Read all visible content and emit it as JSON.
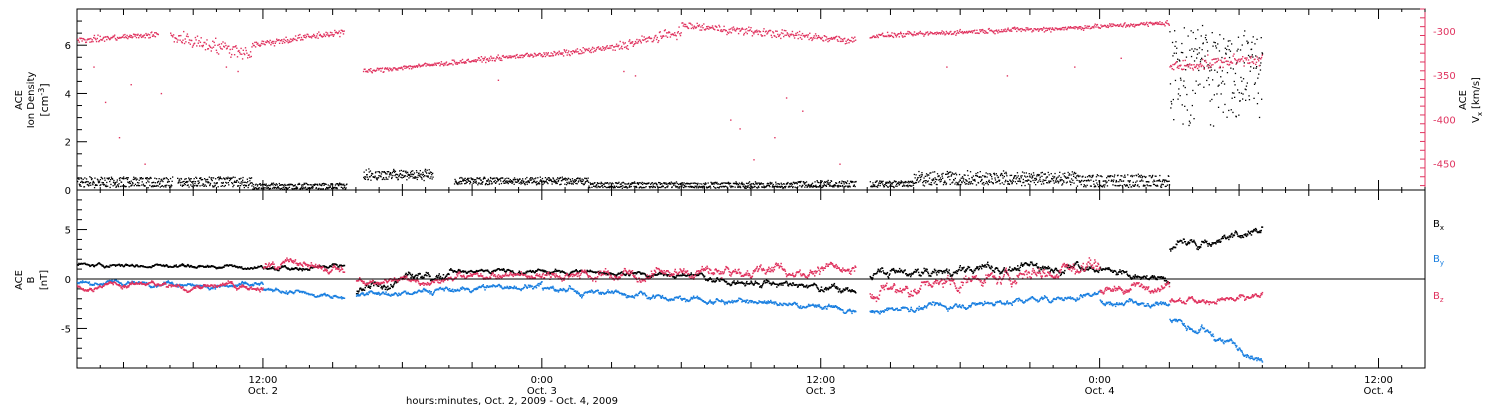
{
  "colors": {
    "black": "#000000",
    "pink": "#e0335f",
    "blue": "#1a7fe0",
    "background": "#ffffff"
  },
  "labels": {
    "top_left_l1": "ACE",
    "top_left_l2": "Ion Density",
    "top_left_unit_base": "[cm",
    "top_left_unit_sup": "-3",
    "top_left_unit_end": "]",
    "top_right_l1": "ACE",
    "top_right_v": "V",
    "top_right_vsub": "x",
    "top_right_unit": "[km/s]",
    "bottom_left_l1": "ACE",
    "bottom_left_b": "B",
    "bottom_left_unit": "[nT]",
    "legend_b": "B",
    "legend_x": "x",
    "legend_y": "y",
    "legend_z": "z",
    "xaxis_title": "hours:minutes, Oct.  2, 2009 - Oct.  4, 2009"
  },
  "time_ticks": [
    {
      "line1": "12:00",
      "line2": "Oct. 2",
      "t": 12
    },
    {
      "line1": "0:00",
      "line2": "Oct. 3",
      "t": 24
    },
    {
      "line1": "12:00",
      "line2": "Oct. 3",
      "t": 36
    },
    {
      "line1": "0:00",
      "line2": "Oct. 4",
      "t": 48
    },
    {
      "line1": "12:00",
      "line2": "Oct. 4",
      "t": 60
    }
  ],
  "chart_data": [
    {
      "type": "scatter",
      "panel": "top",
      "x_unit": "hours since 2009-10-02 00:00",
      "xlim": [
        4,
        62
      ],
      "y_left": {
        "label": "ACE Ion Density [cm-3]",
        "lim": [
          0,
          7.5
        ],
        "ticks": [
          0,
          2,
          4,
          6
        ]
      },
      "y_right": {
        "label": "ACE Vx [km/s]",
        "lim": [
          -480,
          -275
        ],
        "ticks": [
          -300,
          -350,
          -400,
          -450
        ]
      },
      "series": [
        {
          "name": "Ion Density",
          "axis": "left",
          "color": "#000000",
          "segments": [
            {
              "t0": 4.0,
              "t1": 11.5,
              "levels": [
                0.2,
                0.35,
                0.5
              ],
              "noise": 0.1
            },
            {
              "t0": 11.5,
              "t1": 16.0,
              "levels": [
                0.1,
                0.25
              ],
              "noise": 0.08
            },
            {
              "t0": 16.0,
              "t1": 20.0,
              "levels": [
                0.7,
                0.6,
                0.8,
                0.5
              ],
              "noise": 0.15
            },
            {
              "t0": 20.0,
              "t1": 26.0,
              "levels": [
                0.4,
                0.3,
                0.5
              ],
              "noise": 0.1
            },
            {
              "t0": 26.0,
              "t1": 35.0,
              "levels": [
                0.15,
                0.3
              ],
              "noise": 0.08
            },
            {
              "t0": 35.0,
              "t1": 40.0,
              "levels": [
                0.2,
                0.35
              ],
              "noise": 0.1
            },
            {
              "t0": 40.0,
              "t1": 47.0,
              "levels": [
                0.4,
                0.55,
                0.3,
                0.7
              ],
              "noise": 0.15
            },
            {
              "t0": 47.0,
              "t1": 51.0,
              "levels": [
                0.2,
                0.4,
                0.6
              ],
              "noise": 0.1
            },
            {
              "t0": 51.0,
              "t1": 55.0,
              "levels": [
                5.5,
                4.5,
                6.0,
                3.5
              ],
              "noise": 1.2
            }
          ],
          "gaps": [
            [
              8.1,
              8.3
            ],
            [
              15.6,
              16.3
            ],
            [
              19.3,
              20.2
            ],
            [
              37.5,
              38.1
            ]
          ]
        },
        {
          "name": "Vx",
          "axis": "right",
          "color": "#e0335f",
          "segments": [
            {
              "t0": 4.0,
              "t1": 7.5,
              "v0": -310,
              "v1": -303,
              "noise": 5
            },
            {
              "t0": 8.0,
              "t1": 11.5,
              "v0": -305,
              "v1": -325,
              "noise": 12
            },
            {
              "t0": 11.5,
              "t1": 15.5,
              "v0": -315,
              "v1": -300,
              "noise": 6
            },
            {
              "t0": 16.3,
              "t1": 24.0,
              "v0": -345,
              "v1": -325,
              "noise": 4
            },
            {
              "t0": 24.0,
              "t1": 27.0,
              "v0": -327,
              "v1": -318,
              "noise": 5
            },
            {
              "t0": 27.0,
              "t1": 30.0,
              "v0": -318,
              "v1": -300,
              "noise": 8
            },
            {
              "t0": 30.0,
              "t1": 37.5,
              "v0": -293,
              "v1": -310,
              "noise": 7
            },
            {
              "t0": 38.1,
              "t1": 45.0,
              "v0": -305,
              "v1": -297,
              "noise": 4
            },
            {
              "t0": 45.0,
              "t1": 51.0,
              "v0": -298,
              "v1": -290,
              "noise": 4
            },
            {
              "t0": 51.0,
              "t1": 55.0,
              "v0": -340,
              "v1": -330,
              "noise": 10
            }
          ],
          "scatter_low": [
            [
              4.7,
              -340
            ],
            [
              5.2,
              -380
            ],
            [
              5.8,
              -420
            ],
            [
              6.3,
              -360
            ],
            [
              6.9,
              -450
            ],
            [
              7.6,
              -370
            ],
            [
              10.4,
              -340
            ],
            [
              10.9,
              -345
            ],
            [
              22.1,
              -355
            ],
            [
              27.5,
              -345
            ],
            [
              28.0,
              -350
            ],
            [
              32.1,
              -400
            ],
            [
              32.5,
              -410
            ],
            [
              33.1,
              -445
            ],
            [
              34.0,
              -420
            ],
            [
              34.5,
              -375
            ],
            [
              35.2,
              -390
            ],
            [
              36.8,
              -450
            ],
            [
              41.4,
              -340
            ],
            [
              44.0,
              -350
            ],
            [
              46.9,
              -340
            ],
            [
              48.9,
              -330
            ]
          ]
        }
      ]
    },
    {
      "type": "scatter",
      "panel": "bottom",
      "x_unit": "hours since 2009-10-02 00:00",
      "xlim": [
        4,
        62
      ],
      "y_left": {
        "label": "ACE B [nT]",
        "lim": [
          -9,
          9
        ],
        "ticks": [
          5,
          0,
          -5
        ]
      },
      "legend": [
        "Bx",
        "By",
        "Bz"
      ],
      "legend_position": "right",
      "series": [
        {
          "name": "Bx",
          "color": "#000000",
          "segments": [
            {
              "t0": 4.0,
              "t1": 12.0,
              "v0": 1.5,
              "v1": 1.3,
              "noise": 0.3
            },
            {
              "t0": 12.0,
              "t1": 15.5,
              "v0": 1.2,
              "v1": 1.3,
              "noise": 0.4
            },
            {
              "t0": 16.0,
              "t1": 20.0,
              "v0": -1.5,
              "v1": 1.0,
              "noise": 0.8
            },
            {
              "t0": 20.0,
              "t1": 31.0,
              "v0": 1.0,
              "v1": 0.5,
              "noise": 0.4
            },
            {
              "t0": 31.0,
              "t1": 37.5,
              "v0": 0.0,
              "v1": -1.0,
              "noise": 0.6
            },
            {
              "t0": 38.1,
              "t1": 48.0,
              "v0": 0.5,
              "v1": 1.5,
              "noise": 0.8
            },
            {
              "t0": 48.0,
              "t1": 51.0,
              "v0": 1.0,
              "v1": 0.0,
              "noise": 0.6
            },
            {
              "t0": 51.0,
              "t1": 55.0,
              "v0": 3.0,
              "v1": 5.5,
              "noise": 0.8
            }
          ]
        },
        {
          "name": "By",
          "color": "#1a7fe0",
          "segments": [
            {
              "t0": 4.0,
              "t1": 12.0,
              "v0": -0.3,
              "v1": -0.6,
              "noise": 0.4
            },
            {
              "t0": 12.0,
              "t1": 15.5,
              "v0": -1.0,
              "v1": -1.8,
              "noise": 0.4
            },
            {
              "t0": 16.0,
              "t1": 24.0,
              "v0": -1.6,
              "v1": -0.5,
              "noise": 0.5
            },
            {
              "t0": 24.0,
              "t1": 37.5,
              "v0": -1.0,
              "v1": -3.0,
              "noise": 0.5
            },
            {
              "t0": 38.1,
              "t1": 48.0,
              "v0": -3.2,
              "v1": -1.5,
              "noise": 0.5
            },
            {
              "t0": 48.0,
              "t1": 51.0,
              "v0": -2.0,
              "v1": -2.5,
              "noise": 0.6
            },
            {
              "t0": 51.0,
              "t1": 55.0,
              "v0": -4.0,
              "v1": -7.8,
              "noise": 0.6
            }
          ]
        },
        {
          "name": "Bz",
          "color": "#e0335f",
          "segments": [
            {
              "t0": 4.0,
              "t1": 12.0,
              "v0": -0.5,
              "v1": -0.8,
              "noise": 0.5
            },
            {
              "t0": 12.0,
              "t1": 15.5,
              "v0": 1.5,
              "v1": 1.0,
              "noise": 0.8
            },
            {
              "t0": 16.0,
              "t1": 24.0,
              "v0": -0.3,
              "v1": 0.6,
              "noise": 0.6
            },
            {
              "t0": 24.0,
              "t1": 37.5,
              "v0": 0.5,
              "v1": 1.0,
              "noise": 0.9
            },
            {
              "t0": 38.1,
              "t1": 48.0,
              "v0": -1.5,
              "v1": 1.5,
              "noise": 1.2
            },
            {
              "t0": 48.0,
              "t1": 51.0,
              "v0": -1.0,
              "v1": -0.5,
              "noise": 0.8
            },
            {
              "t0": 51.0,
              "t1": 55.0,
              "v0": -2.0,
              "v1": -2.0,
              "noise": 0.6
            }
          ]
        }
      ]
    }
  ]
}
